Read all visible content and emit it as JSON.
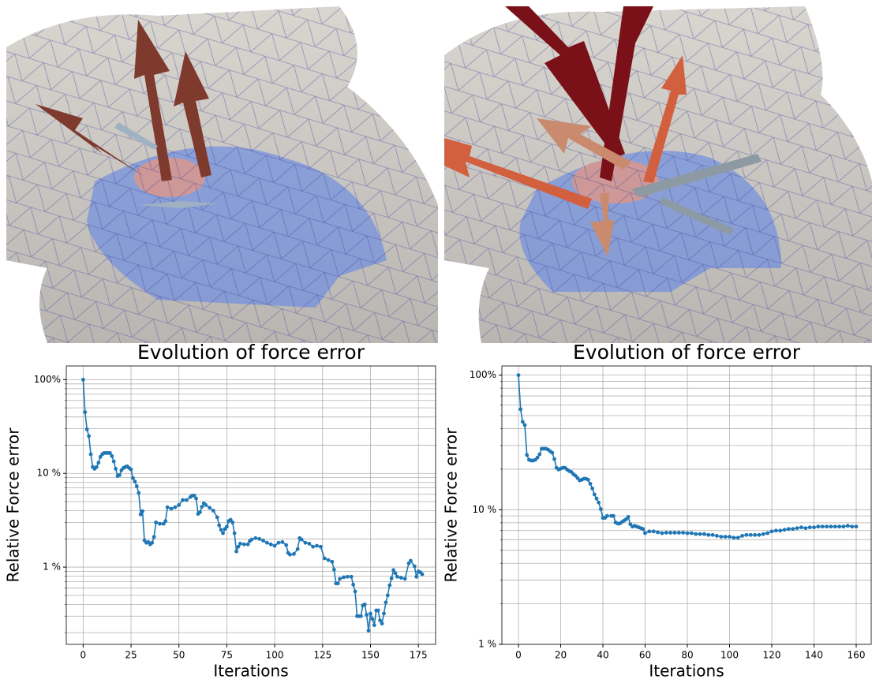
{
  "chart_data": [
    {
      "type": "line",
      "title": "Evolution of force error",
      "x_label": "Iterations",
      "y_label": "Relative Force error",
      "log_y": true,
      "grid": true,
      "color": "#1f77b4",
      "x": [
        0,
        1,
        2,
        3,
        4,
        5,
        6,
        7,
        8,
        9,
        10,
        11,
        12,
        13,
        14,
        15,
        16,
        17,
        18,
        19,
        20,
        21,
        22,
        23,
        24,
        25,
        26,
        27,
        28,
        29,
        30,
        31,
        32,
        33,
        34,
        35,
        36,
        37,
        38,
        40,
        42,
        43,
        44,
        46,
        48,
        50,
        52,
        54,
        56,
        57,
        58,
        59,
        60,
        61,
        62,
        63,
        64,
        66,
        68,
        70,
        71,
        72,
        73,
        74,
        75,
        76,
        77,
        78,
        79,
        80,
        81,
        82,
        84,
        86,
        87,
        88,
        90,
        92,
        94,
        96,
        98,
        100,
        102,
        104,
        106,
        107,
        108,
        110,
        112,
        113,
        114,
        116,
        118,
        120,
        122,
        124,
        126,
        128,
        130,
        131,
        132,
        133,
        134,
        136,
        138,
        140,
        141,
        142,
        143,
        144,
        145,
        146,
        147,
        148,
        149,
        150,
        151,
        152,
        153,
        154,
        155,
        156,
        157,
        158,
        159,
        160,
        161,
        162,
        163,
        164,
        166,
        168,
        170,
        171,
        173,
        174,
        175,
        176,
        177
      ],
      "values": [
        100,
        45,
        29.5,
        25,
        16,
        11.7,
        11.2,
        11.7,
        13,
        15,
        16,
        16.5,
        16.5,
        16.5,
        16.5,
        15.3,
        13.4,
        11.2,
        9.4,
        9.6,
        10.8,
        11.4,
        11.7,
        11.9,
        11.4,
        11,
        8.9,
        8.2,
        7.3,
        6.2,
        3.65,
        3.95,
        1.93,
        1.82,
        1.85,
        1.75,
        1.82,
        2.1,
        3.0,
        2.9,
        2.9,
        3.1,
        4.35,
        4.2,
        4.35,
        4.6,
        5.2,
        5.2,
        5.6,
        5.8,
        5.8,
        5.4,
        3.7,
        3.85,
        4.4,
        4.8,
        4.6,
        4.3,
        4.0,
        3.4,
        2.8,
        2.5,
        2.3,
        2.55,
        2.7,
        3.1,
        3.2,
        3.0,
        2.3,
        1.47,
        1.65,
        1.78,
        1.75,
        1.75,
        1.9,
        1.97,
        2.04,
        2.0,
        1.92,
        1.82,
        1.75,
        1.69,
        1.82,
        1.85,
        1.72,
        1.42,
        1.36,
        1.38,
        1.56,
        2.04,
        1.97,
        1.82,
        1.78,
        1.65,
        1.69,
        1.65,
        1.24,
        1.19,
        1.14,
        0.94,
        0.67,
        0.67,
        0.75,
        0.78,
        0.79,
        0.79,
        0.65,
        0.55,
        0.3,
        0.3,
        0.3,
        0.39,
        0.4,
        0.31,
        0.21,
        0.32,
        0.28,
        0.24,
        0.345,
        0.345,
        0.27,
        0.25,
        0.32,
        0.42,
        0.5,
        0.64,
        0.76,
        0.93,
        0.86,
        0.79,
        0.77,
        0.75,
        1.1,
        1.17,
        1.02,
        0.79,
        0.9,
        0.88,
        0.84
      ],
      "xlim": [
        -8.8,
        184
      ],
      "ylim": [
        0.15,
        140
      ],
      "xticks": [
        0,
        25,
        50,
        75,
        100,
        125,
        150,
        175
      ],
      "yticks": [
        {
          "value": 1,
          "label": "1 %"
        },
        {
          "value": 10,
          "label": "10 %"
        },
        {
          "value": 100,
          "label": "100%"
        }
      ],
      "y_minor_ticks": [
        0.2,
        0.3,
        0.4,
        0.5,
        0.6,
        0.7,
        0.8,
        0.9,
        2,
        3,
        4,
        5,
        6,
        7,
        8,
        9,
        20,
        30,
        40,
        50,
        60,
        70,
        80,
        90
      ]
    },
    {
      "type": "line",
      "title": "Evolution of force error",
      "x_label": "Iterations",
      "y_label": "Relative Force error",
      "log_y": true,
      "grid": true,
      "color": "#1f77b4",
      "x": [
        0,
        1,
        2,
        3,
        4,
        5,
        6,
        7,
        8,
        9,
        10,
        11,
        12,
        13,
        14,
        15,
        16,
        17,
        18,
        19,
        20,
        21,
        22,
        23,
        24,
        25,
        26,
        27,
        28,
        29,
        30,
        31,
        32,
        33,
        34,
        35,
        36,
        37,
        38,
        39,
        40,
        41,
        42,
        44,
        45,
        46,
        47,
        48,
        49,
        50,
        51,
        52,
        53,
        54,
        55,
        56,
        57,
        58,
        59,
        60,
        62,
        64,
        66,
        68,
        70,
        72,
        74,
        76,
        78,
        80,
        82,
        84,
        86,
        88,
        90,
        92,
        94,
        96,
        98,
        100,
        102,
        104,
        106,
        108,
        110,
        112,
        114,
        116,
        118,
        120,
        122,
        124,
        126,
        128,
        130,
        132,
        134,
        136,
        138,
        140,
        142,
        144,
        146,
        148,
        150,
        152,
        154,
        156,
        158,
        160
      ],
      "values": [
        100,
        55.8,
        45,
        42.6,
        25.5,
        23.5,
        23.2,
        23.2,
        23.5,
        24.4,
        25.8,
        28.4,
        28.4,
        28.4,
        28,
        27.2,
        26.5,
        23.8,
        20.5,
        19.9,
        20.2,
        20.5,
        20.5,
        19.9,
        19.4,
        19.1,
        18.4,
        17.9,
        17.2,
        16.5,
        16.7,
        17,
        17,
        16.7,
        15.6,
        14.4,
        13,
        12.1,
        11.3,
        10.1,
        8.7,
        8.7,
        9.0,
        9.0,
        9.0,
        8.05,
        7.9,
        7.9,
        8.1,
        8.3,
        8.5,
        8.85,
        7.8,
        7.5,
        7.6,
        7.5,
        7.4,
        7.3,
        7.2,
        6.7,
        6.9,
        6.9,
        6.8,
        6.7,
        6.75,
        6.75,
        6.75,
        6.75,
        6.75,
        6.7,
        6.7,
        6.6,
        6.6,
        6.6,
        6.5,
        6.5,
        6.4,
        6.3,
        6.3,
        6.3,
        6.2,
        6.2,
        6.4,
        6.5,
        6.5,
        6.5,
        6.5,
        6.6,
        6.7,
        6.9,
        7.0,
        7.0,
        7.1,
        7.2,
        7.2,
        7.3,
        7.4,
        7.3,
        7.4,
        7.4,
        7.5,
        7.5,
        7.5,
        7.5,
        7.5,
        7.5,
        7.5,
        7.6,
        7.5,
        7.5
      ],
      "xlim": [
        -7.85,
        167.1
      ],
      "ylim": [
        1,
        117
      ],
      "xticks": [
        0,
        20,
        40,
        60,
        80,
        100,
        120,
        140,
        160
      ],
      "yticks": [
        {
          "value": 1,
          "label": "1 %"
        },
        {
          "value": 10,
          "label": "10 %"
        },
        {
          "value": 100,
          "label": "100%"
        }
      ],
      "y_minor_ticks": [
        2,
        3,
        4,
        5,
        6,
        7,
        8,
        9,
        20,
        30,
        40,
        50,
        60,
        70,
        80,
        90
      ]
    }
  ]
}
